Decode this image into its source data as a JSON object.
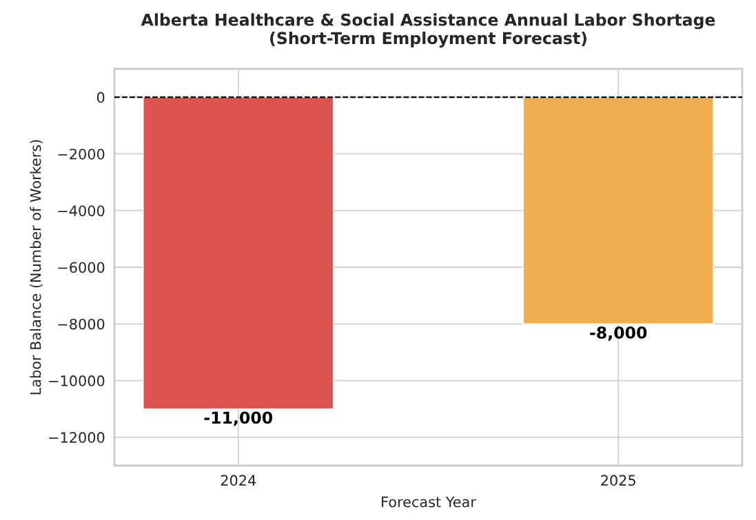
{
  "chart_data": {
    "type": "bar",
    "title": "Alberta Healthcare & Social Assistance Annual Labor Shortage\n(Short-Term Employment Forecast)",
    "xlabel": "Forecast Year",
    "ylabel": "Labor Balance (Number of Workers)",
    "categories": [
      "2024",
      "2025"
    ],
    "values": [
      -11000,
      -8000
    ],
    "colors": [
      "#db5450",
      "#efae50"
    ],
    "value_labels": [
      "-11,000",
      "-8,000"
    ],
    "ylim": [
      -13000,
      1000
    ],
    "yticks": [
      0,
      {
        "value": -2000,
        "label": "−2000"
      },
      {
        "value": -4000,
        "label": "−4000"
      },
      {
        "value": -6000,
        "label": "−6000"
      },
      {
        "value": -8000,
        "label": "−8000"
      },
      {
        "value": -10000,
        "label": "−10000"
      },
      {
        "value": -12000,
        "label": "−12000"
      }
    ],
    "ref_lines": [
      {
        "axis": "y",
        "value": 0,
        "color": "#000000",
        "line_style": "dashed"
      }
    ],
    "grid": true
  }
}
